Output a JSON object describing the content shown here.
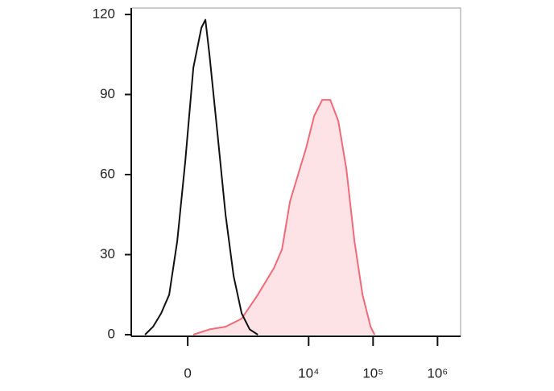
{
  "chart_data": {
    "type": "histogram-overlay",
    "xscale": "biexponential",
    "xlim": [
      -982,
      2280000
    ],
    "ylim": [
      -0.6,
      122.4
    ],
    "xticks": [
      0,
      {
        "value": 10000,
        "label": "10⁴"
      },
      {
        "value": 100000,
        "label": "10⁵"
      },
      {
        "value": 1000000,
        "label": "10⁶"
      }
    ],
    "yticks": [
      0,
      30,
      60,
      90,
      120
    ],
    "series": [
      {
        "color": "#111111",
        "fill": "none",
        "x": [
          -582,
          -420,
          -292,
          -189,
          -102,
          -23,
          54,
          135,
          180,
          228,
          341,
          480,
          659,
          895,
          1205,
          1617
        ],
        "values": [
          0,
          3,
          8,
          15,
          35,
          65,
          100,
          115,
          118,
          105,
          75,
          45,
          22,
          8,
          2,
          0
        ]
      },
      {
        "color": "#f06a7a",
        "fill": "#fde3e6",
        "x": [
          54,
          228,
          480,
          895,
          1617,
          2889,
          3854,
          5142,
          6857,
          9148,
          12191,
          16253,
          21679,
          28914,
          38570,
          51391,
          68522,
          91344,
          105496
        ],
        "values": [
          0,
          2,
          3,
          6,
          15,
          25,
          32,
          50,
          60,
          70,
          82,
          88,
          88,
          80,
          62,
          35,
          15,
          3,
          0
        ]
      }
    ]
  }
}
